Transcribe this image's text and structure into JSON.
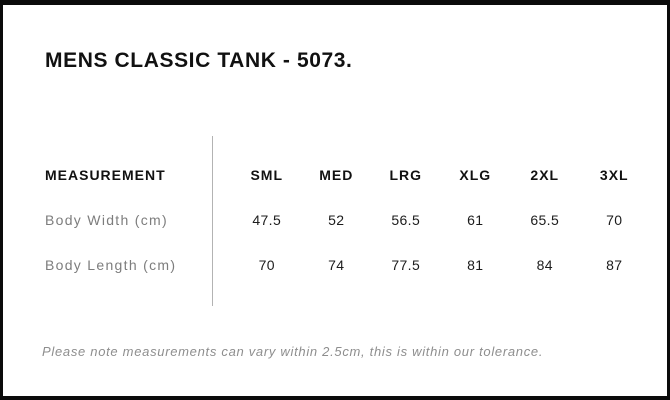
{
  "panel": {
    "title": "MENS CLASSIC TANK - 5073.",
    "note": "Please note measurements can vary within 2.5cm, this is within our tolerance."
  },
  "size_chart": {
    "measurement_header": "MEASUREMENT",
    "sizes": [
      "SML",
      "MED",
      "LRG",
      "XLG",
      "2XL",
      "3XL"
    ],
    "rows": [
      {
        "label": "Body Width (cm)",
        "values": [
          "47.5",
          "52",
          "56.5",
          "61",
          "65.5",
          "70"
        ]
      },
      {
        "label": "Body Length (cm)",
        "values": [
          "70",
          "74",
          "77.5",
          "81",
          "84",
          "87"
        ]
      }
    ]
  },
  "colors": {
    "frame_border": "#0b0b0b",
    "background": "#ffffff",
    "heading_text": "#111111",
    "value_text": "#1c1c1c",
    "label_text": "#7d7d7d",
    "note_text": "#8e8e8e",
    "divider": "#b3b3b3"
  }
}
